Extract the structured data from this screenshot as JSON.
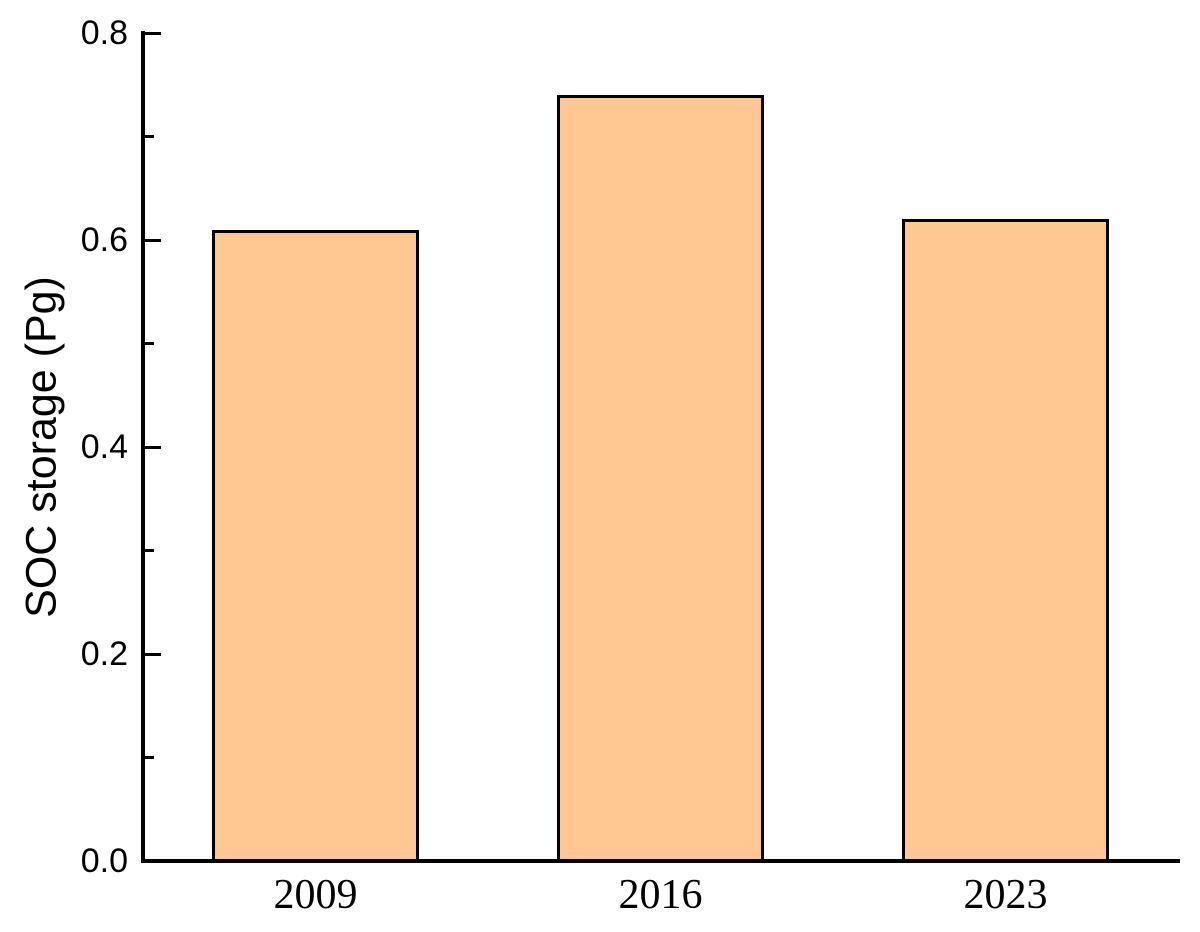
{
  "figure": {
    "background": "#FFFFFF"
  },
  "chart_data": {
    "type": "bar",
    "categories": [
      "2009",
      "2016",
      "2023"
    ],
    "values": [
      0.61,
      0.74,
      0.62
    ],
    "title": "",
    "xlabel": "",
    "ylabel": "SOC storage（Pg）",
    "ylim": [
      0,
      0.8
    ],
    "yticks": [
      0.0,
      0.2,
      0.4,
      0.6,
      0.8
    ],
    "ytick_labels": [
      "0.0",
      "0.2",
      "0.4",
      "0.6",
      "0.8"
    ],
    "minor_ytick_step": 0.1,
    "grid": false,
    "legend": false,
    "tick_direction": "in",
    "bar_fill_color": "#FFC792",
    "bar_edge_color": "#000000",
    "axis_color": "#000000",
    "text_color": "#000000"
  }
}
